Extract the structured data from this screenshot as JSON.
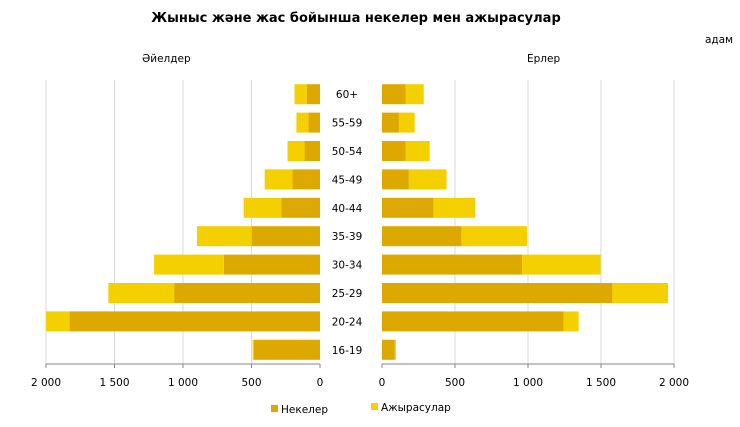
{
  "chart_data": {
    "type": "bar",
    "orientation": "horizontal-pyramid",
    "stacked": true,
    "title": "Жыныс және жас бойынша некелер мен ажырасулар",
    "unit": "адам",
    "categories": [
      "60+",
      "55-59",
      "50-54",
      "45-49",
      "40-44",
      "35-39",
      "30-34",
      "25-29",
      "20-24",
      "16-19"
    ],
    "panels": [
      {
        "label": "Әйелдер",
        "side": "left",
        "xlim": [
          0,
          2000
        ],
        "ticks": [
          "0",
          "500",
          "1 000",
          "1 500",
          "2 000"
        ],
        "tick_values": [
          0,
          500,
          1000,
          1500,
          2000
        ],
        "series": [
          {
            "name": "Некелер",
            "values": [
              97,
              85,
              114,
              201,
              281,
              499,
              702,
              1065,
              1828,
              482
            ]
          },
          {
            "name": "Ажырасулар",
            "values": [
              89,
              87,
              123,
              203,
              276,
              399,
              509,
              480,
              172,
              10
            ]
          }
        ]
      },
      {
        "label": "Ерлер",
        "side": "right",
        "xlim": [
          0,
          2000
        ],
        "ticks": [
          "0",
          "500",
          "1 000",
          "1 500",
          "2 000"
        ],
        "tick_values": [
          0,
          500,
          1000,
          1500,
          2000
        ],
        "series": [
          {
            "name": "Некелер",
            "values": [
              163,
              116,
              163,
              184,
              354,
              544,
              959,
              1578,
              1245,
              88
            ]
          },
          {
            "name": "Ажырасулар",
            "values": [
              123,
              108,
              164,
              258,
              285,
              449,
              538,
              381,
              102,
              7
            ]
          }
        ]
      }
    ],
    "legend": {
      "placement": "bottom",
      "entries": [
        "Некелер",
        "Ажырасулар"
      ]
    },
    "colors": {
      "Некелер": "#DDA900",
      "Ажырасулар": "#F5D000",
      "grid": "#D9D9D9",
      "axis": "#868686"
    },
    "grid": true
  }
}
